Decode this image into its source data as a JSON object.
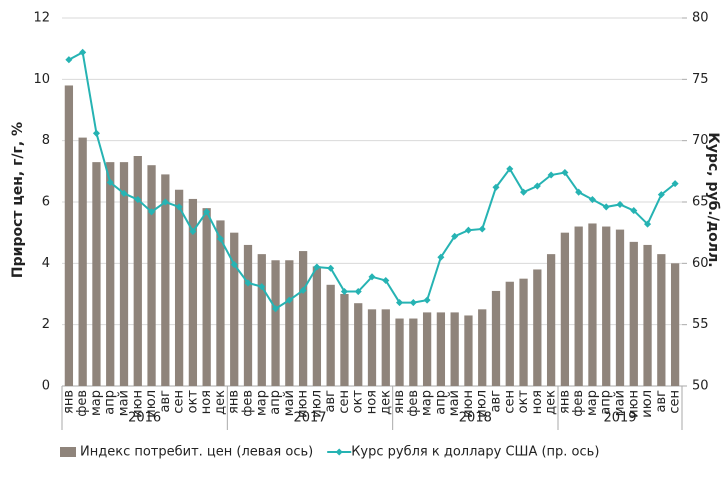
{
  "chart_data": {
    "type": "bar",
    "categories": [
      "янв",
      "фев",
      "мар",
      "апр",
      "май",
      "июн",
      "июл",
      "авг",
      "сен",
      "окт",
      "ноя",
      "дек",
      "янв",
      "фев",
      "мар",
      "апр",
      "май",
      "июн",
      "июл",
      "авг",
      "сен",
      "окт",
      "ноя",
      "дек",
      "янв",
      "фев",
      "мар",
      "апр",
      "май",
      "июн",
      "июл",
      "авг",
      "сен",
      "окт",
      "ноя",
      "дек",
      "янв",
      "фев",
      "мар",
      "апр",
      "май",
      "июн",
      "июл",
      "авг",
      "сен"
    ],
    "year_groups": [
      "2016",
      "2017",
      "2018",
      "2019"
    ],
    "ylabel": "Прирост цен, г/г, %",
    "y2label": "Курс, руб./долл.",
    "ylim": [
      0,
      12
    ],
    "yticks": [
      0,
      2,
      4,
      6,
      8,
      10,
      12
    ],
    "y2lim": [
      50,
      80
    ],
    "y2ticks": [
      50,
      55,
      60,
      65,
      70,
      75,
      80
    ],
    "grid": true,
    "series": [
      {
        "name": "Индекс потребит. цен (левая ось)",
        "type": "bar",
        "color": "#8f847b",
        "values": [
          9.8,
          8.1,
          7.3,
          7.3,
          7.3,
          7.5,
          7.2,
          6.9,
          6.4,
          6.1,
          5.8,
          5.4,
          5.0,
          4.6,
          4.3,
          4.1,
          4.1,
          4.4,
          3.9,
          3.3,
          3.0,
          2.7,
          2.5,
          2.5,
          2.2,
          2.2,
          2.4,
          2.4,
          2.4,
          2.3,
          2.5,
          3.1,
          3.4,
          3.5,
          3.8,
          4.3,
          5.0,
          5.2,
          5.3,
          5.2,
          5.1,
          4.7,
          4.6,
          4.3,
          4.0
        ]
      },
      {
        "name": "Курс рубля к доллару США (пр. ось)",
        "type": "line",
        "axis": "y2",
        "color": "#26b3b3",
        "values": [
          76.6,
          77.2,
          70.6,
          66.6,
          65.7,
          65.2,
          64.2,
          65.0,
          64.6,
          62.6,
          64.2,
          62.0,
          59.9,
          58.4,
          58.1,
          56.3,
          57.0,
          57.8,
          59.7,
          59.6,
          57.7,
          57.7,
          58.9,
          58.6,
          56.8,
          56.8,
          57.0,
          60.5,
          62.2,
          62.7,
          62.8,
          66.2,
          67.7,
          65.8,
          66.3,
          67.2,
          67.4,
          65.8,
          65.2,
          64.6,
          64.8,
          64.3,
          63.2,
          65.6,
          66.5
        ]
      }
    ]
  }
}
